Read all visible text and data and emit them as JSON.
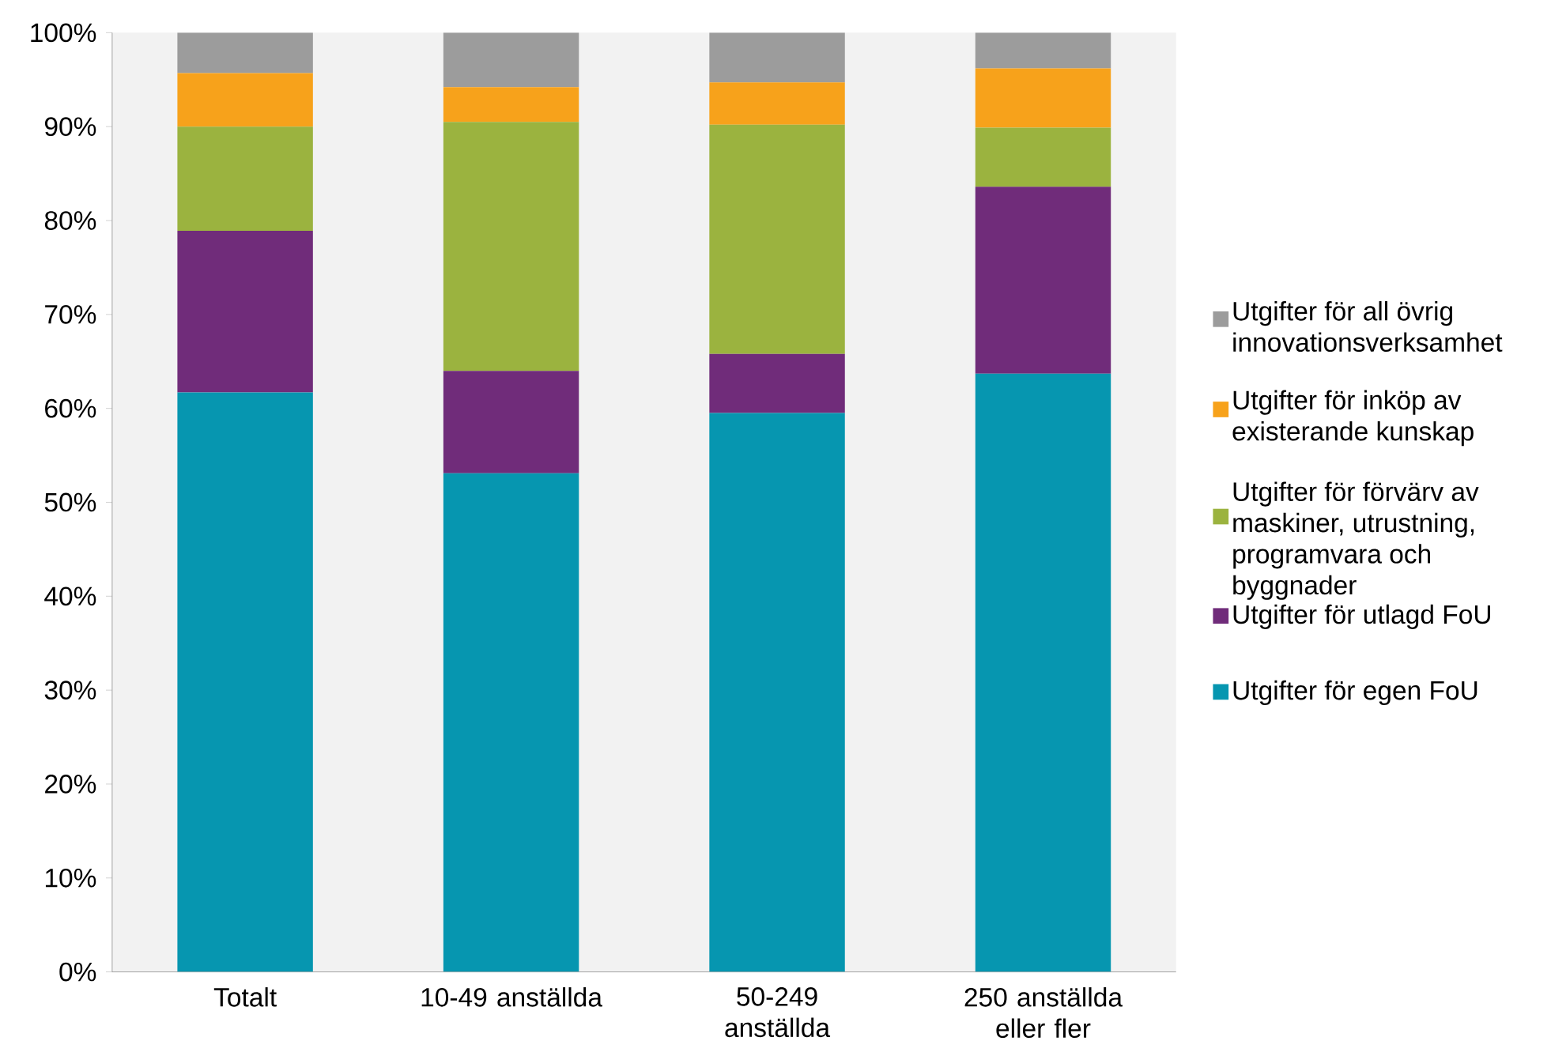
{
  "chart_data": {
    "type": "bar",
    "stacked": true,
    "categories": [
      "Totalt",
      "10-49 anställda",
      "50-249 anställda",
      "250 anställda eller fler"
    ],
    "series": [
      {
        "name": "Utgifter för egen FoU",
        "color": "#0696b0",
        "values": [
          61.7,
          53.1,
          59.5,
          63.7
        ]
      },
      {
        "name": "Utgifter för utlagd FoU",
        "color": "#702c7a",
        "values": [
          17.2,
          10.9,
          6.3,
          19.9
        ]
      },
      {
        "name": "Utgifter för förvärv av maskiner, utrustning, programvara och byggnader",
        "color": "#9bb33f",
        "values": [
          11.1,
          26.5,
          24.4,
          6.3
        ]
      },
      {
        "name": "Utgifter för inköp av existerande kunskap",
        "color": "#f7a21b",
        "values": [
          5.7,
          3.7,
          4.5,
          6.3
        ]
      },
      {
        "name": "Utgifter för all övrig innovationsverksamhet",
        "color": "#9c9c9c",
        "values": [
          4.3,
          5.8,
          5.3,
          3.8
        ]
      }
    ],
    "ylim": [
      0,
      100
    ],
    "yticks": [
      {
        "value": 0,
        "label": "0%"
      },
      {
        "value": 10,
        "label": "10%"
      },
      {
        "value": 20,
        "label": "20%"
      },
      {
        "value": 30,
        "label": "30%"
      },
      {
        "value": 40,
        "label": "40%"
      },
      {
        "value": 50,
        "label": "50%"
      },
      {
        "value": 60,
        "label": "60%"
      },
      {
        "value": 70,
        "label": "70%"
      },
      {
        "value": 80,
        "label": "80%"
      },
      {
        "value": 90,
        "label": "90%"
      },
      {
        "value": 100,
        "label": "100%"
      }
    ],
    "legend": "right"
  }
}
